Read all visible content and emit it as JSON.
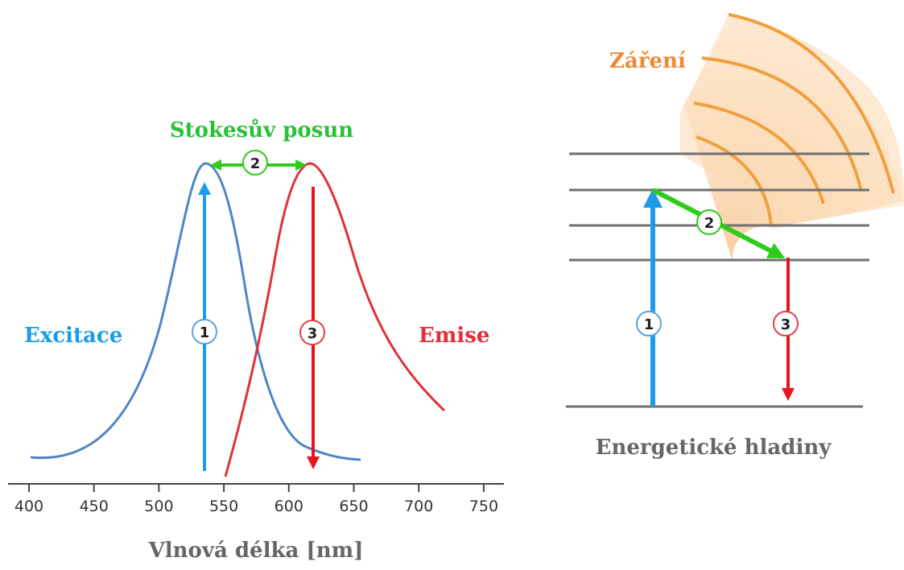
{
  "spectrum": {
    "xlabel": "Vlnová délka [nm]",
    "ticks": [
      "400",
      "450",
      "500",
      "550",
      "600",
      "650",
      "700",
      "750"
    ],
    "excitation_label": "Excitace",
    "emission_label": "Emise",
    "stokes_label": "Stokesův posun",
    "excitation_peak_nm": 535,
    "emission_peak_nm": 620
  },
  "energy": {
    "caption": "Energetické hladiny",
    "radiation_label": "Záření"
  },
  "badges": {
    "one": "1",
    "two": "2",
    "three": "3"
  },
  "colors": {
    "excitation": "#4f86c6",
    "excitation_arrow": "#1e9be8",
    "emission": "#e0313a",
    "emission_arrow": "#e8141e",
    "stokes": "#2ecc1a",
    "stokes_label": "#2bbf3a",
    "radiation": "#f0a040",
    "radiation_label": "#f08a30",
    "caption_gray": "#666666",
    "levels": "#707070"
  }
}
